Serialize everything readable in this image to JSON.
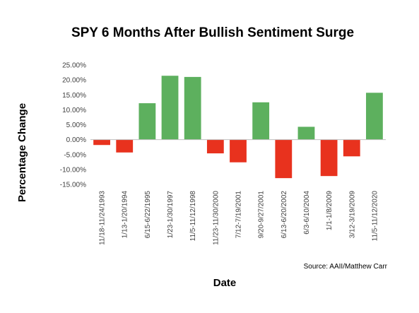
{
  "chart_data": {
    "type": "bar",
    "title": "SPY 6 Months After Bullish Sentiment Surge",
    "xlabel": "Date",
    "ylabel": "Percentage Change",
    "source": "Source: AAII/Matthew Carr",
    "ylim": [
      -15,
      25
    ],
    "yticks": [
      "25.00%",
      "20.00%",
      "15.00%",
      "10.00%",
      "5.00%",
      "0.00%",
      "-5.00%",
      "-10.00%",
      "-15.00%"
    ],
    "ytick_values": [
      25,
      20,
      15,
      10,
      5,
      0,
      -5,
      -10,
      -15
    ],
    "grid": false,
    "legend": "none",
    "positive_color": "#5DB05E",
    "negative_color": "#E8321E",
    "categories": [
      "11/18-11/24/1993",
      "1/13-1/20/1994",
      "6/15-6/22/1995",
      "1/23-1/30/1997",
      "11/5-11/12/1998",
      "11/23-11/30/2000",
      "7/12-7/19/2001",
      "9/20-9/27/2001",
      "6/13-6/20/2002",
      "6/3-6/10/2004",
      "1/1-1/8/2009",
      "3/12-3/19/2009",
      "11/5-11/12/2020"
    ],
    "values": [
      -1.8,
      -4.3,
      12.2,
      21.4,
      21.0,
      -4.6,
      -7.6,
      12.5,
      -12.9,
      4.3,
      -12.2,
      -5.6,
      15.7
    ]
  }
}
